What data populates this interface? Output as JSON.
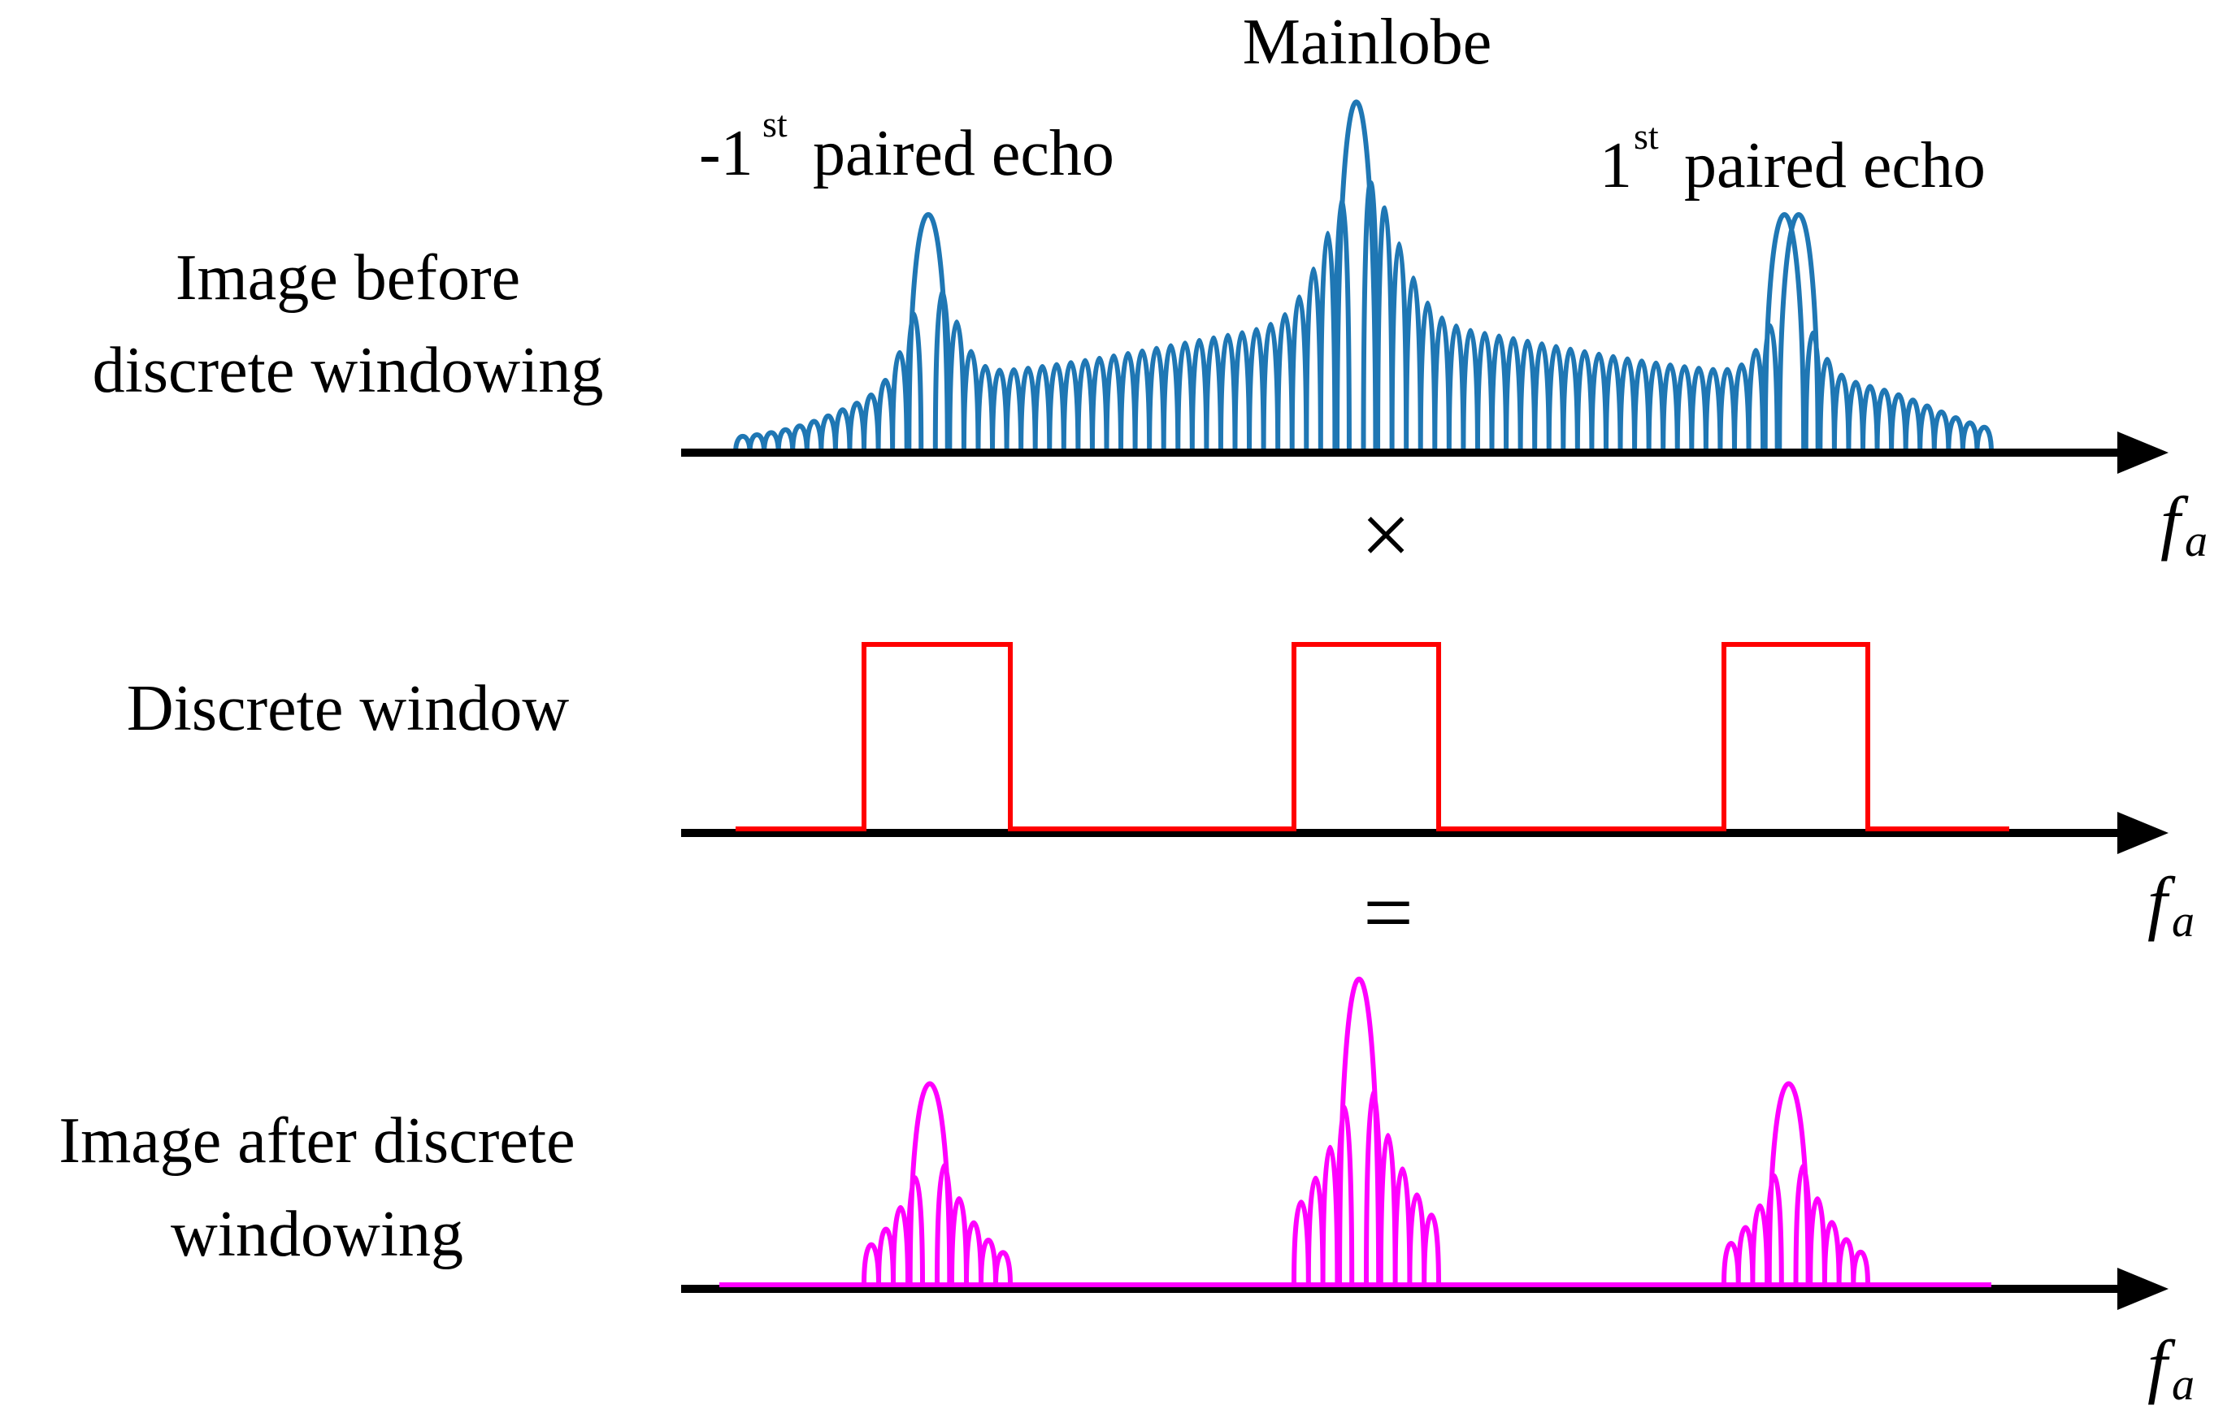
{
  "figure": {
    "row1": {
      "label_line1": "Image before",
      "label_line2": "discrete windowing"
    },
    "row2": {
      "label": "Discrete window"
    },
    "row3": {
      "label_line1": "Image after discrete",
      "label_line2": "windowing"
    },
    "annotations": {
      "mainlobe": "Mainlobe",
      "neg_echo_prefix": "-1",
      "neg_echo_sup": "st",
      "neg_echo_suffix": " paired echo",
      "pos_echo_prefix": "1",
      "pos_echo_sup": "st",
      "pos_echo_suffix": " paired echo"
    },
    "operators": {
      "multiply": "×",
      "equals": "="
    },
    "axis": {
      "label": "f",
      "subscript": "a"
    },
    "colors": {
      "spectrum": "#1f77b4",
      "window": "#ff0000",
      "result": "#ff00ff",
      "axis": "#000000"
    }
  }
}
